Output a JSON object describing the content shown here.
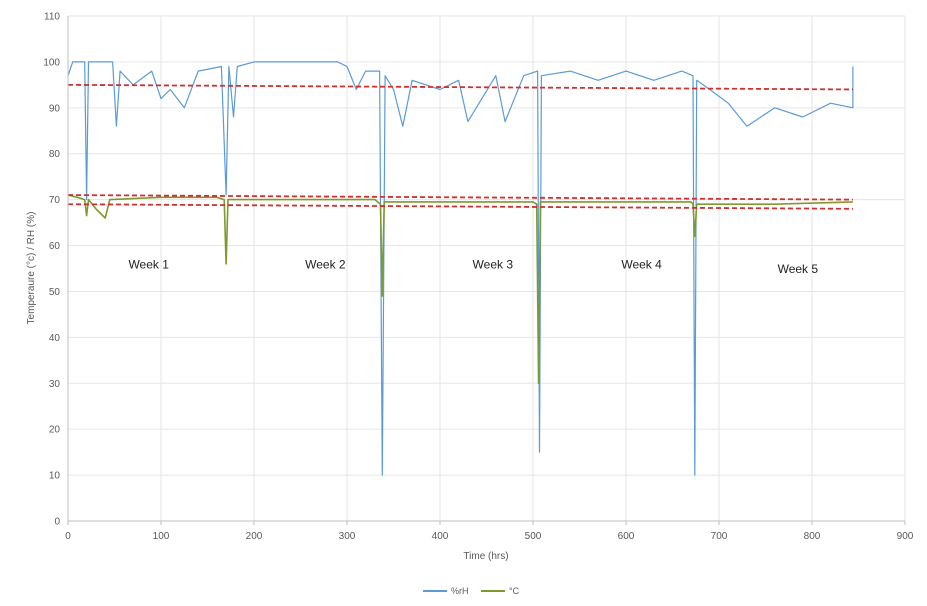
{
  "chart_data": {
    "type": "line",
    "title": "",
    "xlabel": "Time (hrs)",
    "ylabel": "Temperaure (°c) / RH (%)",
    "xlim": [
      0,
      900
    ],
    "ylim": [
      0,
      110
    ],
    "x_ticks": [
      "0",
      "100",
      "200",
      "300",
      "400",
      "500",
      "600",
      "700",
      "800",
      "900"
    ],
    "y_ticks": [
      "0",
      "10",
      "20",
      "30",
      "40",
      "50",
      "60",
      "70",
      "80",
      "90",
      "100",
      "110"
    ],
    "grid": true,
    "legend_position": "bottom",
    "annotations": [
      {
        "text": "Week 1",
        "x": 65,
        "y": 55
      },
      {
        "text": "Week 2",
        "x": 255,
        "y": 55
      },
      {
        "text": "Week 3",
        "x": 435,
        "y": 55
      },
      {
        "text": "Week 4",
        "x": 595,
        "y": 55
      },
      {
        "text": "Week 5",
        "x": 763,
        "y": 54
      }
    ],
    "series": [
      {
        "name": "%rH",
        "color": "#5b9bd5",
        "points": [
          [
            0,
            97
          ],
          [
            5,
            100
          ],
          [
            18,
            100
          ],
          [
            20,
            70
          ],
          [
            22,
            100
          ],
          [
            48,
            100
          ],
          [
            52,
            86
          ],
          [
            56,
            98
          ],
          [
            70,
            95
          ],
          [
            90,
            98
          ],
          [
            100,
            92
          ],
          [
            110,
            94
          ],
          [
            125,
            90
          ],
          [
            140,
            98
          ],
          [
            165,
            99
          ],
          [
            170,
            71
          ],
          [
            173,
            99
          ],
          [
            178,
            88
          ],
          [
            182,
            99
          ],
          [
            200,
            100
          ],
          [
            290,
            100
          ],
          [
            300,
            99
          ],
          [
            310,
            94
          ],
          [
            320,
            98
          ],
          [
            335,
            98
          ],
          [
            338,
            10
          ],
          [
            341,
            97
          ],
          [
            350,
            94
          ],
          [
            360,
            86
          ],
          [
            370,
            96
          ],
          [
            400,
            94
          ],
          [
            420,
            96
          ],
          [
            430,
            87
          ],
          [
            460,
            97
          ],
          [
            470,
            87
          ],
          [
            490,
            97
          ],
          [
            505,
            98
          ],
          [
            507,
            15
          ],
          [
            509,
            97
          ],
          [
            540,
            98
          ],
          [
            570,
            96
          ],
          [
            600,
            98
          ],
          [
            630,
            96
          ],
          [
            660,
            98
          ],
          [
            672,
            97
          ],
          [
            674,
            10
          ],
          [
            676,
            96
          ],
          [
            690,
            94
          ],
          [
            710,
            91
          ],
          [
            730,
            86
          ],
          [
            760,
            90
          ],
          [
            790,
            88
          ],
          [
            820,
            91
          ],
          [
            844,
            90
          ],
          [
            844,
            99
          ]
        ]
      },
      {
        "name": "°C",
        "color": "#7f9a2c",
        "points": [
          [
            0,
            71
          ],
          [
            10,
            70.5
          ],
          [
            18,
            70
          ],
          [
            20,
            66.5
          ],
          [
            22,
            70
          ],
          [
            30,
            68
          ],
          [
            40,
            66
          ],
          [
            45,
            70
          ],
          [
            100,
            70.5
          ],
          [
            160,
            70.5
          ],
          [
            168,
            70
          ],
          [
            170,
            56
          ],
          [
            172,
            70
          ],
          [
            250,
            70
          ],
          [
            330,
            70
          ],
          [
            336,
            69
          ],
          [
            338,
            49
          ],
          [
            340,
            69.5
          ],
          [
            420,
            69.5
          ],
          [
            500,
            69.5
          ],
          [
            504,
            69
          ],
          [
            506,
            30
          ],
          [
            508,
            69.5
          ],
          [
            580,
            69.5
          ],
          [
            670,
            69.5
          ],
          [
            672,
            69
          ],
          [
            674,
            62
          ],
          [
            676,
            69
          ],
          [
            760,
            69
          ],
          [
            844,
            69.5
          ]
        ]
      }
    ],
    "reference_lines": [
      {
        "y_start": 95,
        "y_end": 94,
        "x_start": 0,
        "x_end": 844,
        "color": "#d03030",
        "dash": true
      },
      {
        "y_start": 71,
        "y_end": 70,
        "x_start": 0,
        "x_end": 844,
        "color": "#d03030",
        "dash": true
      },
      {
        "y_start": 69,
        "y_end": 68,
        "x_start": 0,
        "x_end": 844,
        "color": "#d03030",
        "dash": true
      }
    ]
  }
}
